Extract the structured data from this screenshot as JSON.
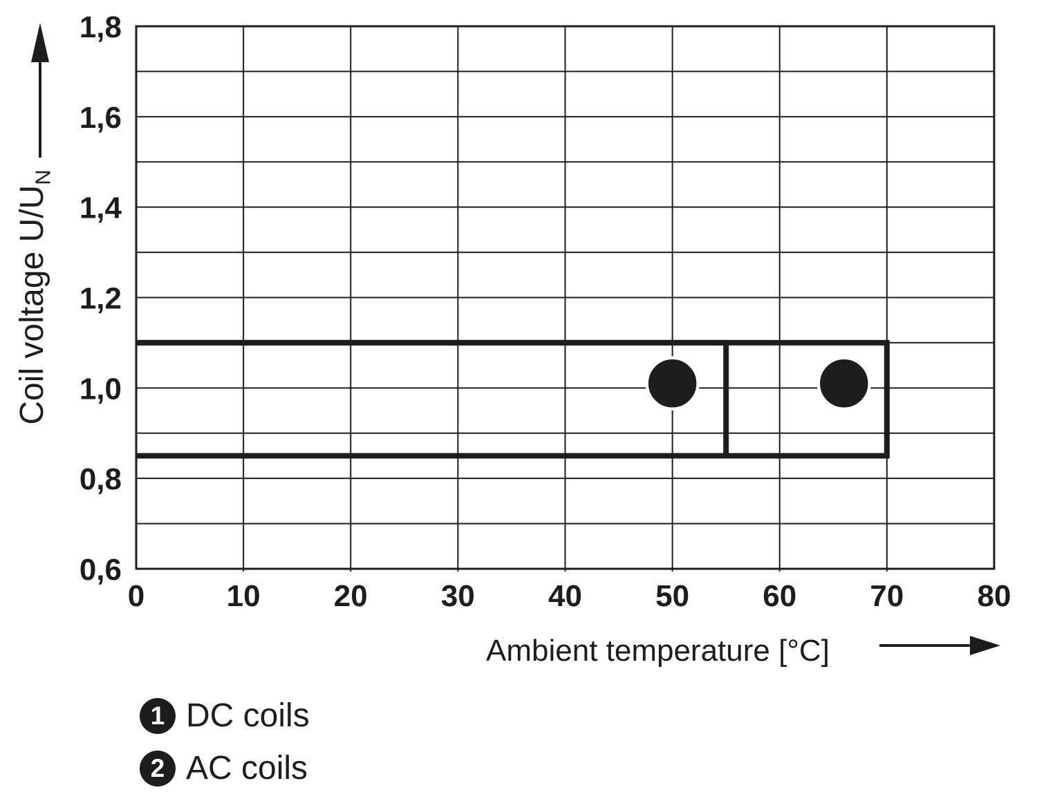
{
  "figure": {
    "background_color": "#ffffff",
    "ink_color": "#1d1d1b",
    "marker_text_color": "#ffffff"
  },
  "chart_data": {
    "type": "area",
    "title": "",
    "xlabel": "Ambient temperature [°C]",
    "ylabel": "Coil voltage U/U",
    "ylabel_subscript": "N",
    "grid": "on",
    "legend_position": "below-chart",
    "x_axis": {
      "min": 0,
      "max": 80,
      "tick_step": 10,
      "tick_labels": [
        "0",
        "10",
        "20",
        "30",
        "40",
        "50",
        "60",
        "70",
        "80"
      ]
    },
    "y_axis": {
      "min": 0.6,
      "max": 1.8,
      "major_tick_step": 0.2,
      "minor_grid_step": 0.1,
      "tick_values": [
        1.8,
        1.6,
        1.4,
        1.2,
        1.0,
        0.8,
        0.6
      ],
      "tick_labels": [
        "1,8",
        "1,6",
        "1,4",
        "1,2",
        "1,0",
        "0,8",
        "0,6"
      ]
    },
    "regions": [
      {
        "id": "1",
        "name": "DC coils",
        "slug": "dc-coils",
        "x_range_c": [
          0,
          70
        ],
        "y_range_u_un": [
          0.85,
          1.1
        ],
        "marker": {
          "x": 66,
          "y": 1.01
        }
      },
      {
        "id": "2",
        "name": "AC coils",
        "slug": "ac-coils",
        "x_range_c": [
          0,
          55
        ],
        "y_range_u_un": [
          0.85,
          1.1
        ],
        "marker": {
          "x": 50,
          "y": 1.01
        }
      }
    ]
  },
  "legend": {
    "items": [
      {
        "id": "1",
        "label": "DC coils"
      },
      {
        "id": "2",
        "label": "AC coils"
      }
    ]
  }
}
